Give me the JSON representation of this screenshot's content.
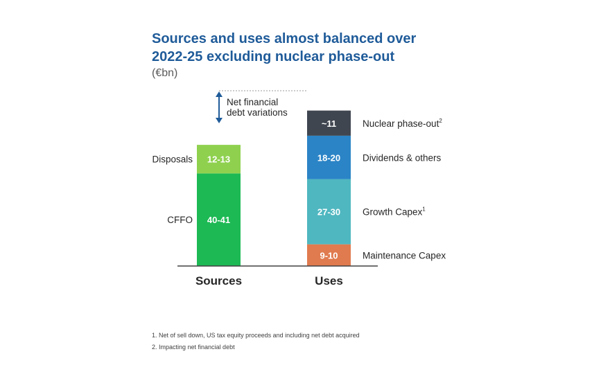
{
  "title_lines": [
    "Sources and uses almost balanced over",
    "2022-25 excluding nuclear phase-out"
  ],
  "subtitle": "(€bn)",
  "annotation": {
    "line1": "Net financial",
    "line2": "debt variations"
  },
  "footnotes": [
    "1.  Net of sell down, US tax equity proceeds and including net debt acquired",
    "2.  Impacting net financial debt"
  ],
  "chart_data": {
    "type": "bar",
    "stacked": true,
    "unit": "€bn",
    "categories": [
      "Sources",
      "Uses"
    ],
    "stacks": [
      {
        "category": "Sources",
        "segments": [
          {
            "label": "CFFO",
            "value_text": "40-41",
            "value": 40.5,
            "color": "#1db954"
          },
          {
            "label": "Disposals",
            "value_text": "12-13",
            "value": 12.5,
            "color": "#8fd14f"
          }
        ]
      },
      {
        "category": "Uses",
        "segments": [
          {
            "label": "Maintenance Capex",
            "value_text": "9-10",
            "value": 9.5,
            "color": "#e07b4f"
          },
          {
            "label": "Growth Capex",
            "sup": "1",
            "value_text": "27-30",
            "value": 28.5,
            "color": "#4fb7c0"
          },
          {
            "label": "Dividends & others",
            "value_text": "18-20",
            "value": 19,
            "color": "#2b84c6"
          },
          {
            "label": "Nuclear phase-out",
            "sup": "2",
            "value_text": "~11",
            "value": 11,
            "color": "#404650"
          }
        ]
      }
    ],
    "colors": {
      "label_text": "#262626",
      "axis": "#404040",
      "arrow": "#1f5b99",
      "value_text": "#ffffff"
    }
  }
}
